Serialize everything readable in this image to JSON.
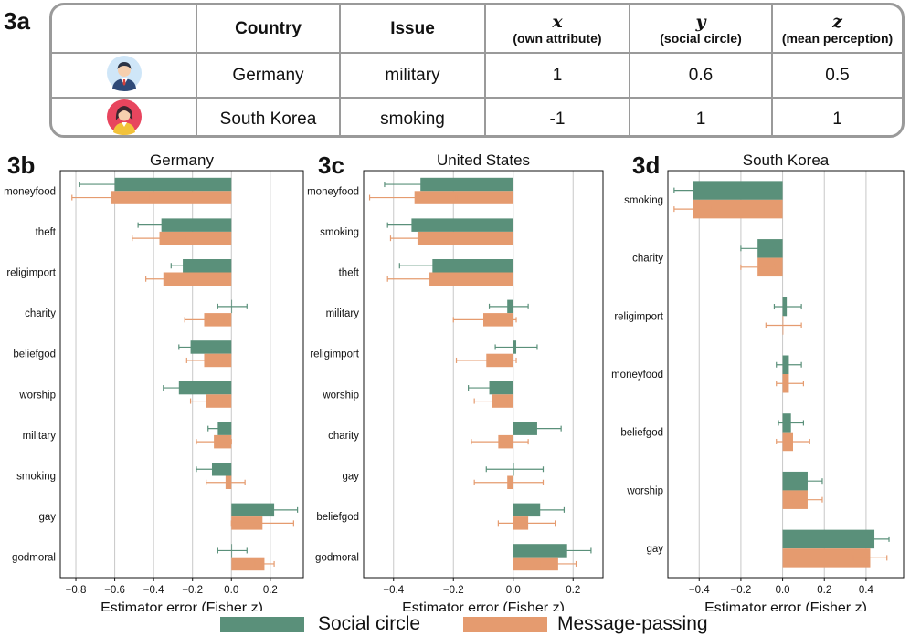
{
  "panels": {
    "a": "3a",
    "b": "3b",
    "c": "3c",
    "d": "3d"
  },
  "table": {
    "headers": {
      "country": "Country",
      "issue": "Issue",
      "x": {
        "var": "x",
        "sub": "(own attribute)"
      },
      "y": {
        "var": "y",
        "sub": "(social circle)"
      },
      "z": {
        "var": "z",
        "sub": "(mean perception)"
      }
    },
    "rows": [
      {
        "avatar": "male-avatar-icon",
        "country": "Germany",
        "issue": "military",
        "x": "1",
        "y": "0.6",
        "z": "0.5"
      },
      {
        "avatar": "female-avatar-icon",
        "country": "South Korea",
        "issue": "smoking",
        "x": "-1",
        "y": "1",
        "z": "1"
      }
    ]
  },
  "colors": {
    "social": "#5a907a",
    "message": "#e59b6f",
    "grid": "#c8c8c8"
  },
  "legend": {
    "social": "Social circle",
    "message": "Message-passing"
  },
  "chart_data": [
    {
      "type": "bar",
      "orientation": "horizontal",
      "title": "Germany",
      "xlabel": "Estimator error (Fisher z)",
      "xlim": [
        -0.88,
        0.37
      ],
      "xticks": [
        -0.8,
        -0.6,
        -0.4,
        -0.2,
        0.0,
        0.2
      ],
      "tick_labels": [
        "−0.8",
        "−0.6",
        "−0.4",
        "−0.2",
        "0.0",
        "0.2"
      ],
      "categories": [
        "moneyfood",
        "theft",
        "religimport",
        "charity",
        "beliefgod",
        "worship",
        "military",
        "smoking",
        "gay",
        "godmoral"
      ],
      "series": [
        {
          "name": "Social circle",
          "values": [
            -0.6,
            -0.36,
            -0.25,
            0.0,
            -0.21,
            -0.27,
            -0.07,
            -0.1,
            0.22,
            0.0
          ],
          "ci": [
            [
              -0.78,
              -0.42
            ],
            [
              -0.48,
              -0.24
            ],
            [
              -0.31,
              -0.18
            ],
            [
              -0.07,
              0.08
            ],
            [
              -0.27,
              -0.14
            ],
            [
              -0.35,
              -0.19
            ],
            [
              -0.12,
              -0.02
            ],
            [
              -0.18,
              -0.03
            ],
            [
              0.1,
              0.34
            ],
            [
              -0.07,
              0.08
            ]
          ]
        },
        {
          "name": "Message-passing",
          "values": [
            -0.62,
            -0.37,
            -0.35,
            -0.14,
            -0.14,
            -0.13,
            -0.09,
            -0.03,
            0.16,
            0.17
          ],
          "ci": [
            [
              -0.82,
              -0.42
            ],
            [
              -0.51,
              -0.23
            ],
            [
              -0.44,
              -0.26
            ],
            [
              -0.24,
              -0.04
            ],
            [
              -0.23,
              -0.05
            ],
            [
              -0.21,
              -0.05
            ],
            [
              -0.18,
              0.0
            ],
            [
              -0.13,
              0.07
            ],
            [
              0.0,
              0.32
            ],
            [
              0.12,
              0.22
            ]
          ]
        }
      ]
    },
    {
      "type": "bar",
      "orientation": "horizontal",
      "title": "United States",
      "xlabel": "Estimator error (Fisher z)",
      "xlim": [
        -0.5,
        0.3
      ],
      "xticks": [
        -0.4,
        -0.2,
        0.0,
        0.2
      ],
      "tick_labels": [
        "−0.4",
        "−0.2",
        "0.0",
        "0.2"
      ],
      "categories": [
        "moneyfood",
        "smoking",
        "theft",
        "military",
        "religimport",
        "worship",
        "charity",
        "gay",
        "beliefgod",
        "godmoral"
      ],
      "series": [
        {
          "name": "Social circle",
          "values": [
            -0.31,
            -0.34,
            -0.27,
            -0.02,
            0.01,
            -0.08,
            0.08,
            0.0,
            0.09,
            0.18
          ],
          "ci": [
            [
              -0.43,
              -0.18
            ],
            [
              -0.42,
              -0.25
            ],
            [
              -0.38,
              -0.17
            ],
            [
              -0.08,
              0.05
            ],
            [
              -0.06,
              0.08
            ],
            [
              -0.15,
              -0.01
            ],
            [
              0.0,
              0.16
            ],
            [
              -0.09,
              0.1
            ],
            [
              0.02,
              0.17
            ],
            [
              0.1,
              0.26
            ]
          ]
        },
        {
          "name": "Message-passing",
          "values": [
            -0.33,
            -0.32,
            -0.28,
            -0.1,
            -0.09,
            -0.07,
            -0.05,
            -0.02,
            0.05,
            0.15
          ],
          "ci": [
            [
              -0.48,
              -0.19
            ],
            [
              -0.41,
              -0.22
            ],
            [
              -0.42,
              -0.14
            ],
            [
              -0.2,
              0.01
            ],
            [
              -0.19,
              0.01
            ],
            [
              -0.13,
              -0.02
            ],
            [
              -0.14,
              0.05
            ],
            [
              -0.13,
              0.1
            ],
            [
              -0.05,
              0.14
            ],
            [
              0.09,
              0.21
            ]
          ]
        }
      ]
    },
    {
      "type": "bar",
      "orientation": "horizontal",
      "title": "South Korea",
      "xlabel": "Estimator error (Fisher z)",
      "xlim": [
        -0.55,
        0.58
      ],
      "xticks": [
        -0.4,
        -0.2,
        0.0,
        0.2,
        0.4
      ],
      "tick_labels": [
        "−0.4",
        "−0.2",
        "0.0",
        "0.2",
        "0.4"
      ],
      "categories": [
        "smoking",
        "charity",
        "religimport",
        "moneyfood",
        "beliefgod",
        "worship",
        "gay"
      ],
      "series": [
        {
          "name": "Social circle",
          "values": [
            -0.43,
            -0.12,
            0.02,
            0.03,
            0.04,
            0.12,
            0.44
          ],
          "ci": [
            [
              -0.52,
              -0.34
            ],
            [
              -0.2,
              -0.04
            ],
            [
              -0.04,
              0.09
            ],
            [
              -0.03,
              0.09
            ],
            [
              -0.02,
              0.1
            ],
            [
              0.05,
              0.19
            ],
            [
              0.37,
              0.51
            ]
          ]
        },
        {
          "name": "Message-passing",
          "values": [
            -0.43,
            -0.12,
            0.0,
            0.03,
            0.05,
            0.12,
            0.42
          ],
          "ci": [
            [
              -0.52,
              -0.34
            ],
            [
              -0.2,
              -0.04
            ],
            [
              -0.08,
              0.09
            ],
            [
              -0.03,
              0.1
            ],
            [
              -0.03,
              0.13
            ],
            [
              0.05,
              0.19
            ],
            [
              0.34,
              0.5
            ]
          ]
        }
      ]
    }
  ]
}
